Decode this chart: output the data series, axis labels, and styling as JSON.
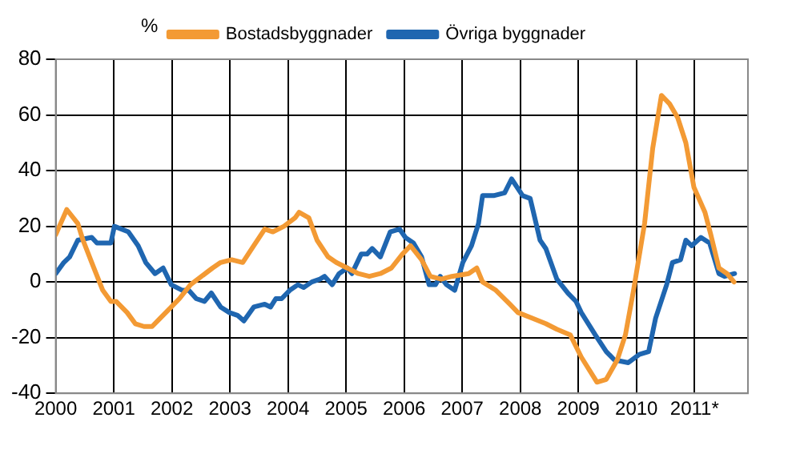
{
  "chart_data": {
    "type": "line",
    "ylabel": "%",
    "xlim": [
      2000,
      2011.92
    ],
    "ylim": [
      -40,
      80
    ],
    "xticks": [
      2000,
      2001,
      2002,
      2003,
      2004,
      2005,
      2006,
      2007,
      2008,
      2009,
      2010,
      {
        "value": 2011,
        "label": "2011*"
      }
    ],
    "yticks": [
      -40,
      -20,
      0,
      20,
      40,
      60,
      80
    ],
    "grid": true,
    "legend": "top",
    "marker": "none",
    "line_style": "solid",
    "series": [
      {
        "name": "Bostadsbyggnader",
        "color": "#f39a34",
        "x": [
          2000.0,
          2000.19,
          2000.38,
          2000.47,
          2000.62,
          2000.81,
          2000.95,
          2001.04,
          2001.23,
          2001.37,
          2001.52,
          2001.66,
          2001.8,
          2001.99,
          2002.13,
          2002.32,
          2002.51,
          2002.7,
          2002.84,
          2003.03,
          2003.22,
          2003.41,
          2003.6,
          2003.74,
          2003.93,
          2004.12,
          2004.19,
          2004.36,
          2004.5,
          2004.69,
          2004.83,
          2005.02,
          2005.21,
          2005.4,
          2005.59,
          2005.78,
          2005.97,
          2006.11,
          2006.3,
          2006.45,
          2006.64,
          2006.82,
          2007.11,
          2007.25,
          2007.35,
          2007.58,
          2007.82,
          2007.96,
          2008.2,
          2008.44,
          2008.63,
          2008.86,
          2009.05,
          2009.32,
          2009.48,
          2009.67,
          2009.81,
          2009.95,
          2010.14,
          2010.28,
          2010.43,
          2010.57,
          2010.71,
          2010.85,
          2010.99,
          2011.18,
          2011.28,
          2011.42,
          2011.56,
          2011.68
        ],
        "values": [
          17,
          26,
          21,
          15,
          7,
          -3,
          -7,
          -7,
          -11,
          -15,
          -16,
          -16,
          -13,
          -9,
          -6,
          -1,
          2,
          5,
          7,
          8,
          7,
          13,
          19,
          18,
          20,
          23,
          25,
          23,
          15,
          9,
          7,
          5,
          3,
          2,
          3,
          5,
          10,
          13,
          8,
          2,
          1,
          2,
          3,
          5,
          0,
          -3,
          -8,
          -11,
          -13,
          -15,
          -17,
          -19,
          -27,
          -36,
          -35,
          -28,
          -19,
          -3,
          21,
          48,
          67,
          64,
          59,
          50,
          34,
          25,
          17,
          5,
          3,
          0
        ]
      },
      {
        "name": "Övriga byggnader",
        "color": "#1f66b0",
        "x": [
          2000.0,
          2000.14,
          2000.24,
          2000.38,
          2000.62,
          2000.71,
          2000.95,
          2001.01,
          2001.25,
          2001.42,
          2001.55,
          2001.71,
          2001.85,
          2001.99,
          2002.18,
          2002.29,
          2002.42,
          2002.56,
          2002.68,
          2002.84,
          2002.99,
          2003.13,
          2003.24,
          2003.41,
          2003.6,
          2003.7,
          2003.79,
          2003.89,
          2004.03,
          2004.17,
          2004.27,
          2004.41,
          2004.55,
          2004.63,
          2004.76,
          2004.88,
          2005.02,
          2005.1,
          2005.26,
          2005.36,
          2005.45,
          2005.59,
          2005.76,
          2005.92,
          2006.02,
          2006.16,
          2006.3,
          2006.43,
          2006.54,
          2006.62,
          2006.73,
          2006.87,
          2007.01,
          2007.16,
          2007.28,
          2007.35,
          2007.54,
          2007.73,
          2007.85,
          2008.04,
          2008.17,
          2008.34,
          2008.44,
          2008.63,
          2008.82,
          2008.96,
          2009.05,
          2009.29,
          2009.48,
          2009.62,
          2009.86,
          2010.05,
          2010.21,
          2010.33,
          2010.52,
          2010.62,
          2010.76,
          2010.85,
          2010.95,
          2011.11,
          2011.26,
          2011.42,
          2011.52,
          2011.69
        ],
        "values": [
          3,
          7,
          9,
          15,
          16,
          14,
          14,
          20,
          18,
          13,
          7,
          3,
          5,
          -1,
          -3,
          -3,
          -6,
          -7,
          -4,
          -9,
          -11,
          -12,
          -14,
          -9,
          -8,
          -9,
          -6,
          -6,
          -3,
          -1,
          -2,
          0,
          1,
          2,
          -1,
          3,
          5,
          3,
          10,
          10,
          12,
          9,
          18,
          19,
          16,
          14,
          9,
          -1,
          -1,
          2,
          -1,
          -3,
          7,
          13,
          21,
          31,
          31,
          32,
          37,
          31,
          30,
          15,
          12,
          1,
          -4,
          -7,
          -11,
          -19,
          -25,
          -28,
          -29,
          -26,
          -25,
          -13,
          -1,
          7,
          8,
          15,
          13,
          16,
          14,
          3,
          2,
          3
        ]
      }
    ]
  }
}
